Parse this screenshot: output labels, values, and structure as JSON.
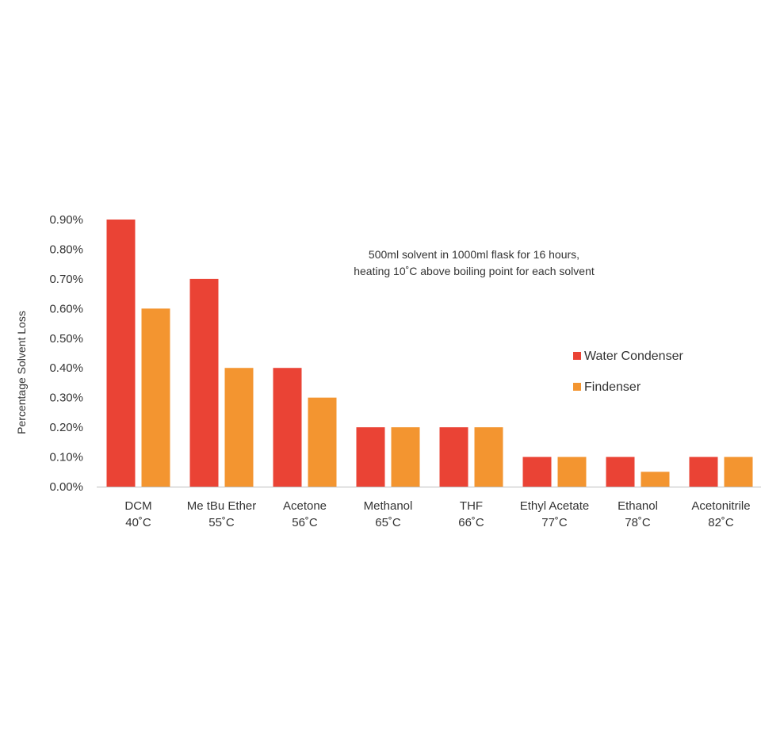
{
  "chart_data": {
    "type": "bar",
    "title": "",
    "xlabel": "",
    "ylabel": "Percentage Solvent Loss",
    "ylim": [
      0,
      0.9
    ],
    "yticks": [
      "0.00%",
      "0.10%",
      "0.20%",
      "0.30%",
      "0.40%",
      "0.50%",
      "0.60%",
      "0.70%",
      "0.80%",
      "0.90%"
    ],
    "ytick_values": [
      0,
      0.1,
      0.2,
      0.3,
      0.4,
      0.5,
      0.6,
      0.7,
      0.8,
      0.9
    ],
    "grid": false,
    "legend_position": "right",
    "categories": [
      {
        "name": "DCM",
        "temp": "40˚C"
      },
      {
        "name": "Me tBu Ether",
        "temp": "55˚C"
      },
      {
        "name": "Acetone",
        "temp": "56˚C"
      },
      {
        "name": "Methanol",
        "temp": "65˚C"
      },
      {
        "name": "THF",
        "temp": "66˚C"
      },
      {
        "name": "Ethyl Acetate",
        "temp": "77˚C"
      },
      {
        "name": "Ethanol",
        "temp": "78˚C"
      },
      {
        "name": "Acetonitrile",
        "temp": "82˚C"
      }
    ],
    "series": [
      {
        "name": "Water Condenser",
        "color": "#ea4335",
        "values": [
          0.9,
          0.7,
          0.4,
          0.2,
          0.2,
          0.1,
          0.1,
          0.1
        ]
      },
      {
        "name": "Findenser",
        "color": "#f39530",
        "values": [
          0.6,
          0.4,
          0.3,
          0.2,
          0.2,
          0.1,
          0.05,
          0.1
        ]
      }
    ],
    "annotation": {
      "line1": "500ml solvent in 1000ml flask for 16 hours,",
      "line2": "heating 10˚C above boiling point for each solvent"
    }
  }
}
